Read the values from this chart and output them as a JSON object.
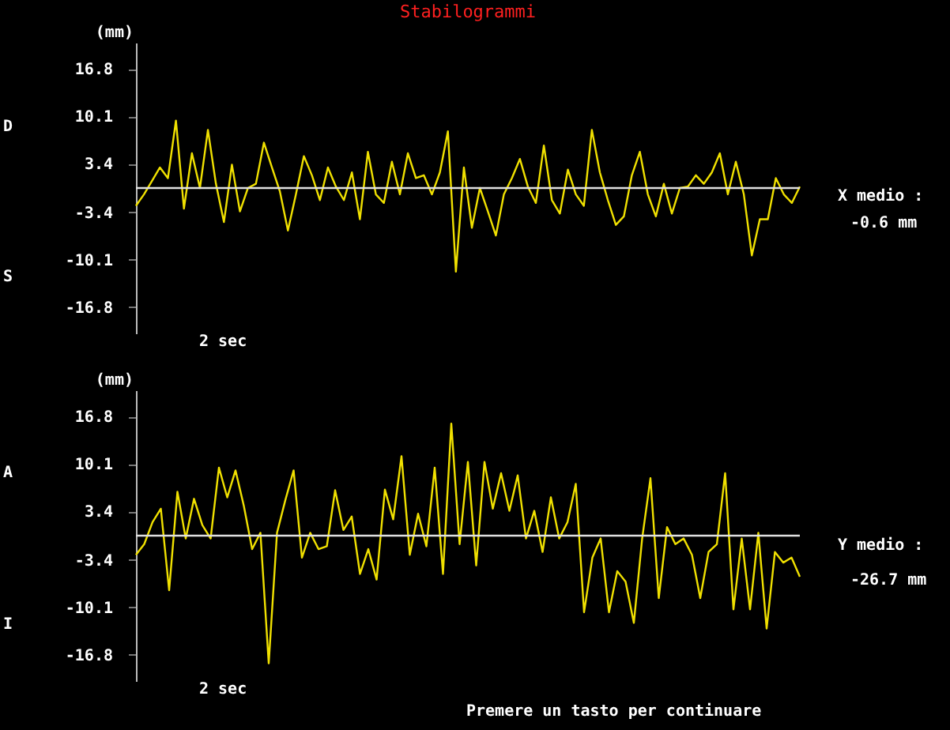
{
  "chart_data": [
    {
      "type": "line",
      "title": "Stabilogrammi",
      "ylabel": "(mm)",
      "ylim": [
        -20.5,
        20.5
      ],
      "yticks": [
        16.8,
        10.1,
        3.4,
        -3.4,
        -10.1,
        -16.8
      ],
      "tick_labels": "y",
      "grid": false,
      "categories": [
        null,
        null,
        null,
        null,
        null,
        null,
        null,
        null,
        null,
        null,
        null,
        null,
        null,
        null,
        null,
        null,
        null,
        null,
        null,
        null,
        null,
        null,
        null,
        null,
        null,
        null,
        null,
        null,
        null,
        null,
        null,
        null,
        null,
        null,
        null,
        null,
        null,
        null,
        null,
        null,
        null,
        null,
        null,
        null,
        null,
        null,
        null,
        null,
        null,
        null,
        null,
        null,
        null,
        null,
        null,
        null,
        null,
        null,
        null,
        null,
        null,
        null,
        null,
        null,
        null,
        null,
        null,
        null,
        null,
        null,
        null,
        null,
        null,
        null,
        null,
        null,
        null,
        null,
        null,
        null,
        null,
        null,
        null,
        null
      ],
      "series": [
        {
          "color": "#f0e000",
          "values": [
            -2.5,
            -0.9,
            1,
            2.9,
            1.4,
            9.5,
            -2.9,
            4.9,
            0,
            8.2,
            0.6,
            -4.8,
            3.3,
            -3.3,
            0,
            0.6,
            6.4,
            2.9,
            -0.5,
            -6,
            -0.9,
            4.5,
            1.8,
            -1.7,
            2.9,
            0.2,
            -1.7,
            2.2,
            -4.4,
            5.1,
            -0.9,
            -2.1,
            3.7,
            -0.9,
            4.9,
            1.4,
            1.8,
            -0.9,
            2.2,
            8,
            -11.8,
            2.9,
            -5.6,
            0,
            -3.3,
            -6.7,
            -0.9,
            1.4,
            4.1,
            0.2,
            -2.1,
            6,
            -1.7,
            -3.6,
            2.6,
            -0.9,
            -2.5,
            8.2,
            2.2,
            -1.7,
            -5.2,
            -4,
            1.8,
            5.1,
            -0.9,
            -4,
            0.6,
            -3.6,
            0,
            0.2,
            1.8,
            0.6,
            2.2,
            4.9,
            -0.9,
            3.7,
            -0.9,
            -9.5,
            -4.4,
            -4.4,
            1.4,
            -0.9,
            -2.1,
            0.2
          ]
        }
      ],
      "ref_lines": [
        {
          "axis": "y",
          "value": 0,
          "color": "#e0e0e0"
        }
      ],
      "annotations": [
        "D",
        "S",
        "X medio :",
        "-0.6 mm",
        "2 sec"
      ]
    },
    {
      "type": "line",
      "ylabel": "(mm)",
      "ylim": [
        -20.5,
        20.5
      ],
      "yticks": [
        16.8,
        10.1,
        3.4,
        -3.4,
        -10.1,
        -16.8
      ],
      "tick_labels": "y",
      "grid": false,
      "categories": [
        null,
        null,
        null,
        null,
        null,
        null,
        null,
        null,
        null,
        null,
        null,
        null,
        null,
        null,
        null,
        null,
        null,
        null,
        null,
        null,
        null,
        null,
        null,
        null,
        null,
        null,
        null,
        null,
        null,
        null,
        null,
        null,
        null,
        null,
        null,
        null,
        null,
        null,
        null,
        null,
        null,
        null,
        null,
        null,
        null,
        null,
        null,
        null,
        null,
        null,
        null,
        null,
        null,
        null,
        null,
        null,
        null,
        null,
        null,
        null,
        null,
        null,
        null,
        null,
        null,
        null,
        null,
        null,
        null,
        null,
        null,
        null,
        null,
        null,
        null,
        null,
        null,
        null,
        null,
        null,
        null
      ],
      "series": [
        {
          "color": "#f0e000",
          "values": [
            -2.7,
            -1.2,
            1.9,
            3.8,
            -7.7,
            6.2,
            -0.4,
            5.2,
            1.5,
            -0.4,
            9.6,
            5.4,
            9.2,
            4.2,
            -1.9,
            0.4,
            -18,
            0.4,
            5,
            9.2,
            -3.1,
            0.4,
            -1.9,
            -1.5,
            6.4,
            0.8,
            2.7,
            -5.4,
            -1.9,
            -6.2,
            6.5,
            2.3,
            11.2,
            -2.7,
            3.1,
            -1.5,
            9.6,
            -5.4,
            15.8,
            -1.2,
            10.4,
            -4.2,
            10.4,
            3.8,
            8.8,
            3.5,
            8.5,
            -0.4,
            3.5,
            -2.3,
            5.4,
            -0.4,
            1.9,
            7.3,
            -10.8,
            -3.1,
            -0.4,
            -10.8,
            -5,
            -6.5,
            -12.3,
            -0.4,
            8.1,
            -8.8,
            1.2,
            -1.2,
            -0.4,
            -2.7,
            -8.8,
            -2.3,
            -1.2,
            8.8,
            -10.4,
            -0.4,
            -10.4,
            0.4,
            -13.1,
            -2.3,
            -3.8,
            -3.1,
            -5.8
          ]
        }
      ],
      "ref_lines": [
        {
          "axis": "y",
          "value": 0,
          "color": "#e0e0e0"
        }
      ],
      "annotations": [
        "A",
        "I",
        "Y medio :",
        "-26.7 mm",
        "2 sec",
        "Premere un tasto per continuare"
      ]
    }
  ]
}
